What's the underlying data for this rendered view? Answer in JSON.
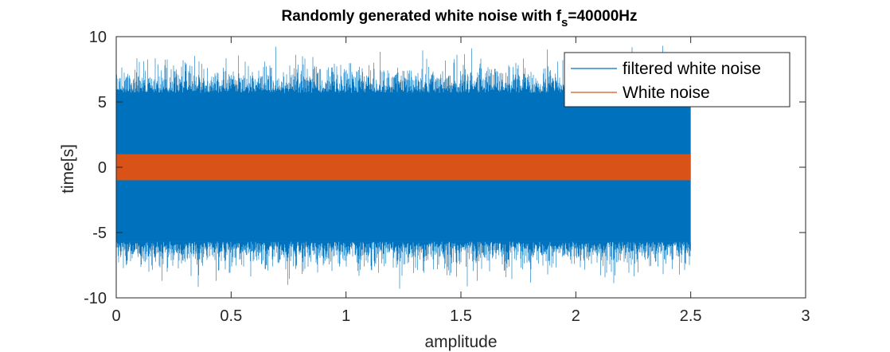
{
  "chart_data": {
    "type": "line",
    "title": {
      "main": "Randomly generated white noise with f",
      "subscript": "s",
      "suffix": "=40000Hz"
    },
    "xlabel": "amplitude",
    "ylabel": "time[s]",
    "xlim": [
      0,
      3
    ],
    "ylim": [
      -10,
      10
    ],
    "xticks": [
      0,
      0.5,
      1,
      1.5,
      2,
      2.5,
      3
    ],
    "xtick_labels": [
      "0",
      "0.5",
      "1",
      "1.5",
      "2",
      "2.5",
      "3"
    ],
    "yticks": [
      10,
      5,
      0,
      -5,
      -10
    ],
    "ytick_labels": [
      "10",
      "5",
      "0",
      "-5",
      "-10"
    ],
    "grid": false,
    "legend_position": "top-right",
    "series": [
      {
        "name": "filtered white noise",
        "color": "#0072BD",
        "x_range": [
          0,
          2.5
        ],
        "dense_band": [
          -5.7,
          5.7
        ],
        "peak_range": [
          -9.3,
          9.3
        ]
      },
      {
        "name": "White noise",
        "color": "#D95319",
        "x_range": [
          0,
          2.5
        ],
        "dense_band": [
          -1,
          1
        ],
        "peak_range": [
          -1,
          1
        ]
      }
    ]
  }
}
